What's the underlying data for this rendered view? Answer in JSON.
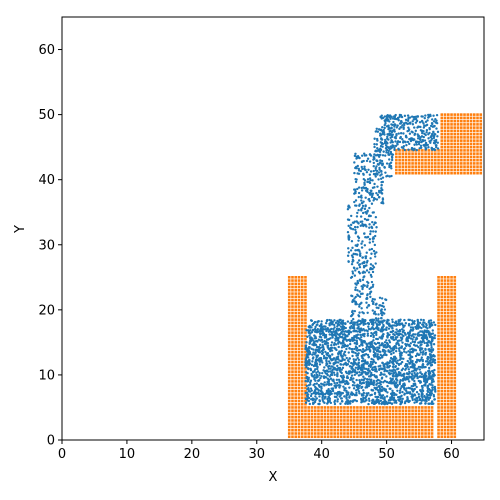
{
  "chart_data": {
    "type": "scatter",
    "title": "",
    "xlabel": "X",
    "ylabel": "Y",
    "xlim": [
      0,
      65
    ],
    "ylim": [
      0,
      65
    ],
    "xticks": [
      "0",
      "10",
      "20",
      "30",
      "40",
      "50",
      "60"
    ],
    "yticks": [
      "0",
      "10",
      "20",
      "30",
      "40",
      "50",
      "60"
    ],
    "grid": false,
    "legend": "none",
    "series": [
      {
        "marker": "square",
        "color": "#ff7f0e",
        "regions": [
          {
            "x": [
              35,
              37.5
            ],
            "y": [
              0.5,
              25
            ]
          },
          {
            "x": [
              38,
              57
            ],
            "y": [
              0.5,
              5
            ]
          },
          {
            "x": [
              58,
              60.5
            ],
            "y": [
              0.5,
              25
            ]
          },
          {
            "x": [
              58.5,
              64.5
            ],
            "y": [
              41,
              50
            ]
          },
          {
            "x": [
              51.5,
              58
            ],
            "y": [
              41,
              44.5
            ]
          }
        ]
      },
      {
        "marker": "dot",
        "color": "#1f77b4",
        "regions": [
          {
            "x": [
              37.5,
              57.5
            ],
            "y": [
              5.5,
              18.5
            ],
            "count": 2300
          },
          {
            "x": [
              44.5,
              50
            ],
            "y": [
              18,
              22
            ],
            "count": 90
          },
          {
            "x": [
              44.5,
              48
            ],
            "y": [
              22,
              26
            ],
            "count": 55
          },
          {
            "x": [
              44,
              48.5
            ],
            "y": [
              26,
              36
            ],
            "count": 170
          },
          {
            "x": [
              45,
              49.5
            ],
            "y": [
              36,
              44
            ],
            "count": 160
          },
          {
            "x": [
              48,
              51
            ],
            "y": [
              40,
              48
            ],
            "count": 110
          },
          {
            "x": [
              49,
              58
            ],
            "y": [
              44.5,
              50
            ],
            "count": 330
          }
        ]
      }
    ]
  }
}
